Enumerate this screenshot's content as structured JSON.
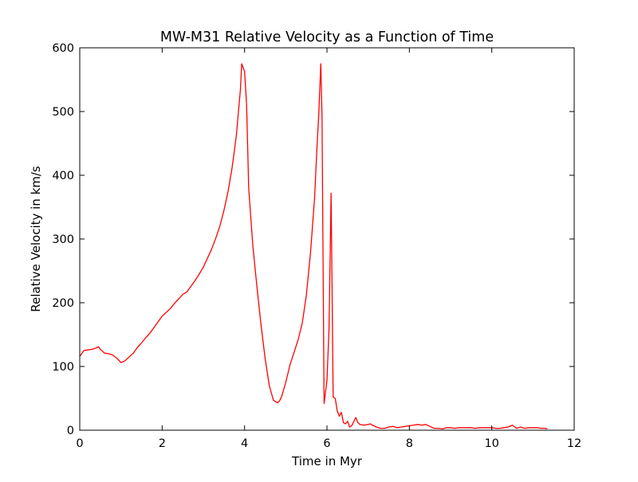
{
  "chart_data": {
    "type": "line",
    "title": "MW-M31 Relative Velocity as a Function of Time",
    "xlabel": "Time in Myr",
    "ylabel": "Relative Velocity in km/s",
    "xlim": [
      0,
      12
    ],
    "ylim": [
      0,
      600
    ],
    "xticks": [
      "0",
      "2",
      "4",
      "6",
      "8",
      "10",
      "12"
    ],
    "yticks": [
      "0",
      "100",
      "200",
      "300",
      "400",
      "500",
      "600"
    ],
    "grid": false,
    "legend": "none",
    "series": [
      {
        "color": "#ff0000",
        "x": [
          0.0,
          0.1,
          0.2,
          0.3,
          0.4,
          0.45,
          0.5,
          0.6,
          0.7,
          0.8,
          0.9,
          1.0,
          1.1,
          1.2,
          1.3,
          1.4,
          1.5,
          1.6,
          1.7,
          1.8,
          1.9,
          2.0,
          2.1,
          2.2,
          2.3,
          2.4,
          2.5,
          2.6,
          2.7,
          2.8,
          2.9,
          3.0,
          3.1,
          3.2,
          3.3,
          3.4,
          3.5,
          3.6,
          3.7,
          3.8,
          3.9,
          3.93,
          4.0,
          4.05,
          4.1,
          4.2,
          4.3,
          4.4,
          4.5,
          4.6,
          4.7,
          4.8,
          4.85,
          4.9,
          5.0,
          5.1,
          5.2,
          5.3,
          5.4,
          5.5,
          5.6,
          5.7,
          5.75,
          5.8,
          5.85,
          5.88,
          5.93,
          6.0,
          6.05,
          6.1,
          6.15,
          6.2,
          6.25,
          6.3,
          6.35,
          6.4,
          6.45,
          6.5,
          6.55,
          6.6,
          6.7,
          6.75,
          6.8,
          6.9,
          7.0,
          7.05,
          7.1,
          7.2,
          7.3,
          7.4,
          7.5,
          7.6,
          7.7,
          7.8,
          7.9,
          8.0,
          8.1,
          8.2,
          8.3,
          8.4,
          8.5,
          8.6,
          8.7,
          8.8,
          8.85,
          8.9,
          9.0,
          9.1,
          9.2,
          9.3,
          9.4,
          9.5,
          9.6,
          9.7,
          9.8,
          9.9,
          10.0,
          10.1,
          10.2,
          10.3,
          10.4,
          10.5,
          10.6,
          10.7,
          10.8,
          10.9,
          11.0,
          11.1,
          11.2,
          11.3,
          11.35
        ],
        "y": [
          116,
          125,
          126,
          127,
          129,
          131,
          127,
          121,
          120,
          118,
          113,
          106,
          109,
          115,
          121,
          130,
          137,
          145,
          152,
          161,
          170,
          179,
          185,
          191,
          199,
          206,
          213,
          217,
          226,
          235,
          245,
          256,
          270,
          284,
          301,
          320,
          345,
          375,
          413,
          462,
          535,
          575,
          563,
          510,
          380,
          290,
          225,
          165,
          112,
          70,
          47,
          43,
          46,
          53,
          75,
          102,
          122,
          142,
          168,
          212,
          278,
          365,
          435,
          495,
          575,
          492,
          42,
          78,
          160,
          372,
          52,
          50,
          30,
          22,
          28,
          12,
          10,
          14,
          5,
          7,
          20,
          12,
          9,
          8,
          9,
          10,
          8,
          5,
          3,
          3,
          5,
          6,
          4,
          5,
          6,
          7,
          8,
          9,
          8,
          9,
          6,
          3,
          3,
          2,
          3,
          4,
          4,
          3,
          4,
          4,
          4,
          4,
          3,
          4,
          4,
          4,
          4,
          3,
          3,
          4,
          5,
          8,
          3,
          5,
          3,
          4,
          4,
          4,
          3,
          3,
          2
        ]
      }
    ]
  }
}
